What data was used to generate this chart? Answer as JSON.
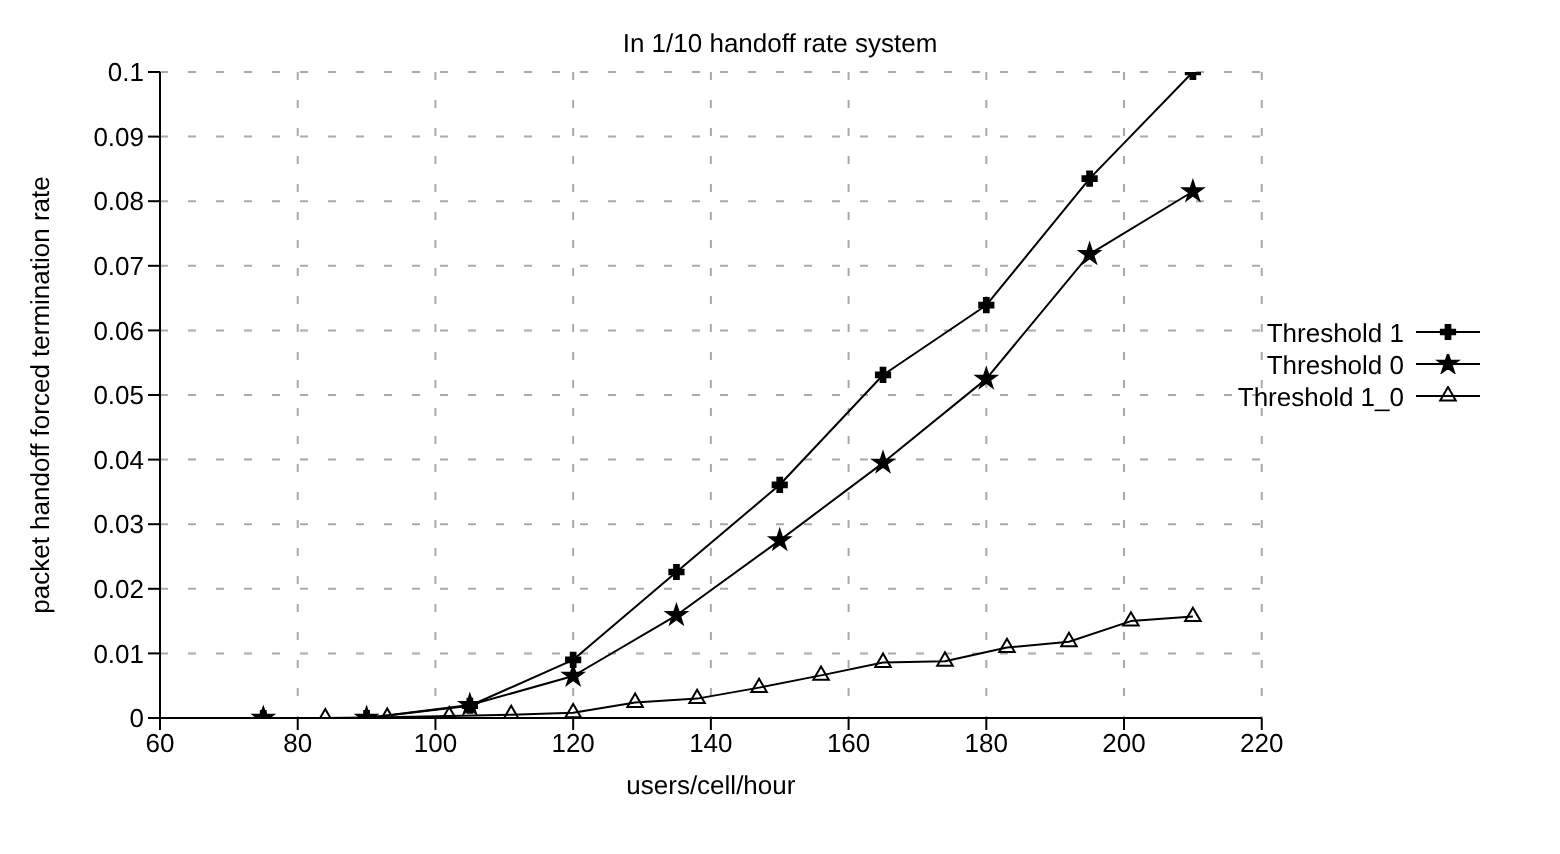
{
  "chart_data": {
    "type": "line",
    "title": "In 1/10 handoff rate system",
    "xlabel": "users/cell/hour",
    "ylabel": "packet handoff forced termination rate",
    "xlim": [
      60,
      220
    ],
    "xticks": [
      60,
      80,
      100,
      120,
      140,
      160,
      180,
      200,
      220
    ],
    "ylim": [
      0,
      0.1
    ],
    "yticks": [
      0,
      0.01,
      0.02,
      0.03,
      0.04,
      0.05,
      0.06,
      0.07,
      0.08,
      0.09,
      0.1
    ],
    "grid": true,
    "legend": "right",
    "line_style": "solid",
    "series": [
      {
        "name": "Threshold 1",
        "color": "#000000",
        "marker": "cross",
        "x": [
          75,
          90,
          105,
          120,
          135,
          150,
          165,
          180,
          195,
          210
        ],
        "values": [
          0,
          0,
          0.0019,
          0.009,
          0.0226,
          0.0361,
          0.0531,
          0.0639,
          0.0835,
          0.1
        ]
      },
      {
        "name": "Threshold 0",
        "color": "#000000",
        "marker": "star",
        "x": [
          75,
          90,
          105,
          120,
          135,
          150,
          165,
          180,
          195,
          210
        ],
        "values": [
          0,
          0,
          0.002,
          0.0065,
          0.0159,
          0.0275,
          0.0395,
          0.0525,
          0.0718,
          0.0815
        ]
      },
      {
        "name": "Threshold 1_0",
        "color": "#000000",
        "marker": "triangle",
        "x": [
          75,
          84,
          93,
          102,
          111,
          120,
          129,
          138,
          147,
          156,
          165,
          174,
          183,
          192,
          201,
          210
        ],
        "values": [
          0,
          0,
          0.0001,
          0.0003,
          0.0005,
          0.0008,
          0.0024,
          0.003,
          0.0047,
          0.0066,
          0.0086,
          0.0088,
          0.0109,
          0.0118,
          0.015,
          0.0157
        ]
      }
    ]
  }
}
